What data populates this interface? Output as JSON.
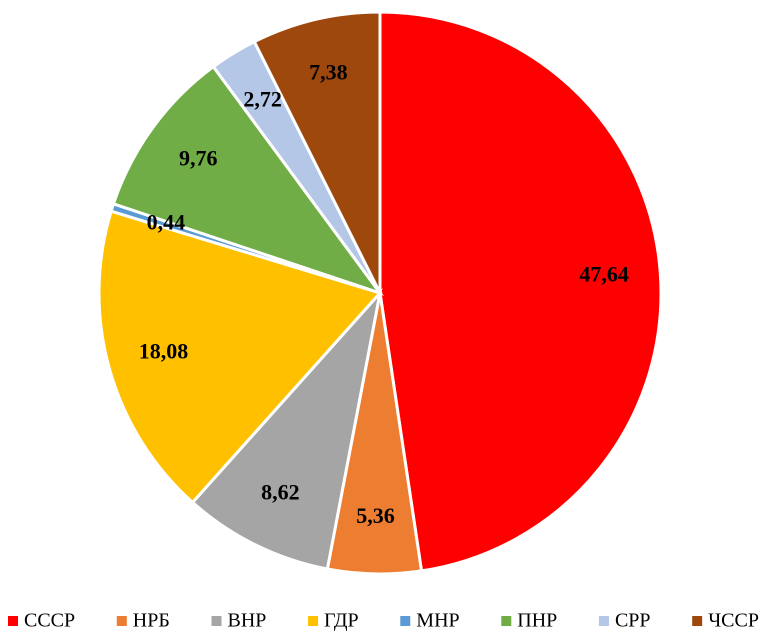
{
  "chart_data": {
    "type": "pie",
    "categories": [
      "СССР",
      "НРБ",
      "ВНР",
      "ГДР",
      "МНР",
      "ПНР",
      "СРР",
      "ЧССР"
    ],
    "values": [
      47.64,
      5.36,
      8.62,
      18.08,
      0.44,
      9.76,
      2.72,
      7.38
    ],
    "value_labels": [
      "47,64",
      "5,36",
      "8,62",
      "18,08",
      "0,44",
      "9,76",
      "2,72",
      "7,38"
    ],
    "colors": [
      "#ff0000",
      "#ed7d31",
      "#a5a5a5",
      "#ffc000",
      "#5b9bd5",
      "#70ad47",
      "#b4c7e7",
      "#9e480e"
    ],
    "legend": "bottom"
  }
}
